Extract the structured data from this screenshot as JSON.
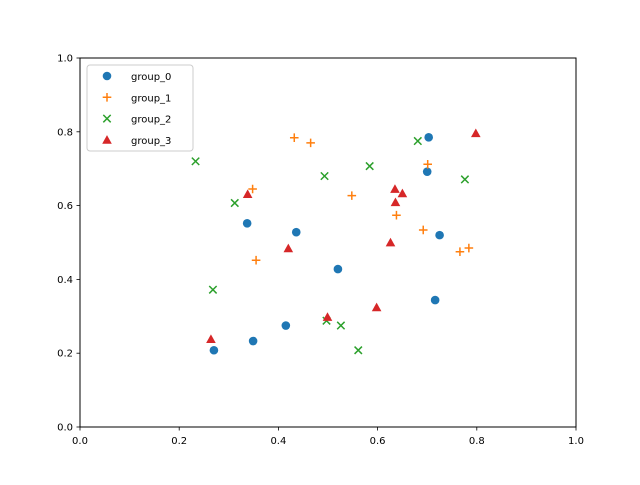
{
  "chart_data": {
    "type": "scatter",
    "title": "",
    "xlabel": "",
    "ylabel": "",
    "xlim": [
      0.0,
      1.0
    ],
    "ylim": [
      0.0,
      1.0
    ],
    "xticks": [
      "0.0",
      "0.2",
      "0.4",
      "0.6",
      "0.8",
      "1.0"
    ],
    "yticks": [
      "0.0",
      "0.2",
      "0.4",
      "0.6",
      "0.8",
      "1.0"
    ],
    "grid": false,
    "legend": {
      "position": "top-left"
    },
    "series": [
      {
        "name": "group_0",
        "marker": "circle",
        "color": "#1f77b4",
        "points": [
          [
            0.27,
            0.208
          ],
          [
            0.349,
            0.233
          ],
          [
            0.415,
            0.275
          ],
          [
            0.52,
            0.428
          ],
          [
            0.337,
            0.552
          ],
          [
            0.436,
            0.528
          ],
          [
            0.703,
            0.785
          ],
          [
            0.7,
            0.692
          ],
          [
            0.725,
            0.52
          ],
          [
            0.716,
            0.344
          ]
        ]
      },
      {
        "name": "group_1",
        "marker": "plus",
        "color": "#ff7f0e",
        "points": [
          [
            0.432,
            0.784
          ],
          [
            0.465,
            0.77
          ],
          [
            0.348,
            0.645
          ],
          [
            0.355,
            0.452
          ],
          [
            0.548,
            0.627
          ],
          [
            0.638,
            0.574
          ],
          [
            0.701,
            0.712
          ],
          [
            0.692,
            0.534
          ],
          [
            0.766,
            0.475
          ],
          [
            0.784,
            0.485
          ]
        ]
      },
      {
        "name": "group_2",
        "marker": "x",
        "color": "#2ca02c",
        "points": [
          [
            0.233,
            0.72
          ],
          [
            0.312,
            0.607
          ],
          [
            0.268,
            0.372
          ],
          [
            0.493,
            0.68
          ],
          [
            0.584,
            0.707
          ],
          [
            0.681,
            0.775
          ],
          [
            0.776,
            0.671
          ],
          [
            0.497,
            0.288
          ],
          [
            0.526,
            0.275
          ],
          [
            0.561,
            0.208
          ]
        ]
      },
      {
        "name": "group_3",
        "marker": "triangle",
        "color": "#d62728",
        "points": [
          [
            0.264,
            0.238
          ],
          [
            0.338,
            0.631
          ],
          [
            0.42,
            0.484
          ],
          [
            0.499,
            0.298
          ],
          [
            0.598,
            0.324
          ],
          [
            0.626,
            0.5
          ],
          [
            0.635,
            0.645
          ],
          [
            0.636,
            0.609
          ],
          [
            0.65,
            0.633
          ],
          [
            0.798,
            0.796
          ]
        ]
      }
    ]
  }
}
